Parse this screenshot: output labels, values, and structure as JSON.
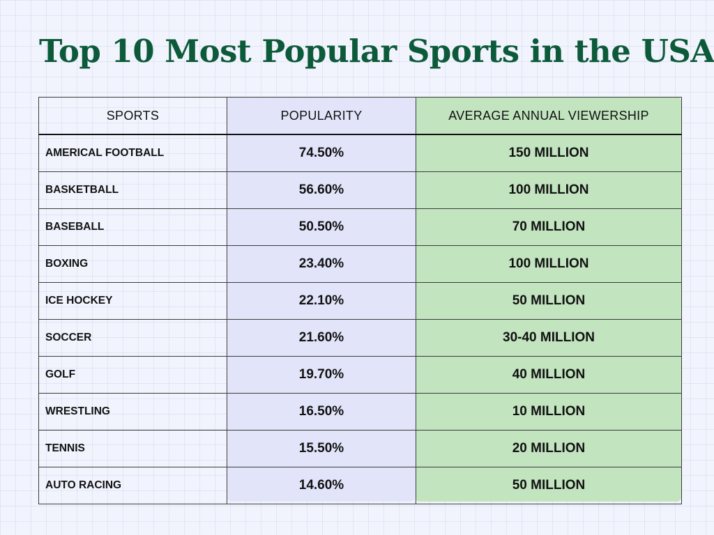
{
  "title": "Top 10 Most Popular Sports in the USA",
  "colors": {
    "title": "#0d5a3a",
    "popularity_column": "#e2e5fa",
    "viewership_column": "#c2e4bf",
    "background": "#f2f4fd"
  },
  "chart_data": {
    "type": "table",
    "title": "Top 10 Most Popular Sports in the USA",
    "columns": [
      "SPORTS",
      "POPULARITY",
      "AVERAGE ANNUAL VIEWERSHIP"
    ],
    "rows": [
      {
        "sport": "AMERICAL FOOTBALL",
        "popularity": "74.50%",
        "viewership": "150 MILLION"
      },
      {
        "sport": "BASKETBALL",
        "popularity": "56.60%",
        "viewership": "100 MILLION"
      },
      {
        "sport": "BASEBALL",
        "popularity": "50.50%",
        "viewership": "70 MILLION"
      },
      {
        "sport": "BOXING",
        "popularity": "23.40%",
        "viewership": "100 MILLION"
      },
      {
        "sport": "ICE HOCKEY",
        "popularity": "22.10%",
        "viewership": "50 MILLION"
      },
      {
        "sport": "SOCCER",
        "popularity": "21.60%",
        "viewership": "30-40 MILLION"
      },
      {
        "sport": "GOLF",
        "popularity": "19.70%",
        "viewership": "40 MILLION"
      },
      {
        "sport": "WRESTLING",
        "popularity": "16.50%",
        "viewership": "10 MILLION"
      },
      {
        "sport": "TENNIS",
        "popularity": "15.50%",
        "viewership": "20 MILLION"
      },
      {
        "sport": "AUTO RACING",
        "popularity": "14.60%",
        "viewership": "50 MILLION"
      }
    ]
  }
}
